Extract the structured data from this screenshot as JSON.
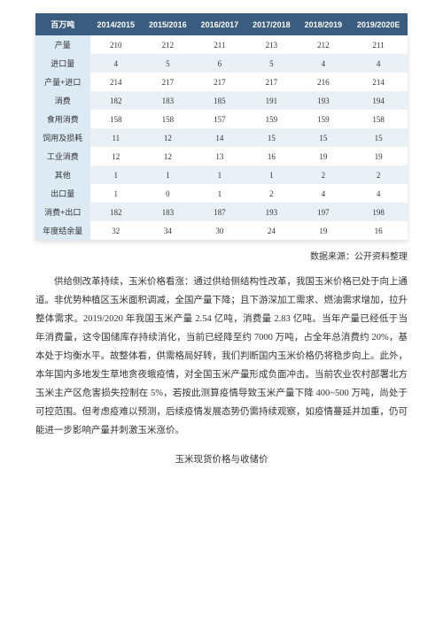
{
  "table": {
    "header_bg": "#3a5c7e",
    "header_color": "#ffffff",
    "rowhead_bg": "#dceaf4",
    "alt_bg": "#eaf1f6",
    "unit_header": "百万吨",
    "year_headers": [
      "2014/2015",
      "2015/2016",
      "2016/2017",
      "2017/2018",
      "2018/2019",
      "2019/2020E"
    ],
    "rows": [
      {
        "label": "产量",
        "vals": [
          "210",
          "212",
          "211",
          "213",
          "212",
          "211"
        ]
      },
      {
        "label": "进口量",
        "vals": [
          "4",
          "5",
          "6",
          "5",
          "4",
          "4"
        ]
      },
      {
        "label": "产量+进口",
        "vals": [
          "214",
          "217",
          "217",
          "217",
          "216",
          "214"
        ]
      },
      {
        "label": "消费",
        "vals": [
          "182",
          "183",
          "185",
          "191",
          "193",
          "194"
        ]
      },
      {
        "label": "食用消费",
        "vals": [
          "158",
          "158",
          "157",
          "159",
          "159",
          "158"
        ]
      },
      {
        "label": "饲用及损耗",
        "vals": [
          "11",
          "12",
          "14",
          "15",
          "15",
          "15"
        ]
      },
      {
        "label": "工业消费",
        "vals": [
          "12",
          "12",
          "13",
          "16",
          "19",
          "19"
        ]
      },
      {
        "label": "其他",
        "vals": [
          "1",
          "1",
          "1",
          "1",
          "2",
          "2"
        ]
      },
      {
        "label": "出口量",
        "vals": [
          "1",
          "0",
          "1",
          "2",
          "4",
          "4"
        ]
      },
      {
        "label": "消费+出口",
        "vals": [
          "182",
          "183",
          "187",
          "193",
          "197",
          "198"
        ]
      },
      {
        "label": "年度结余量",
        "vals": [
          "32",
          "34",
          "30",
          "24",
          "19",
          "16"
        ]
      }
    ]
  },
  "source": "数据来源：公开资料整理",
  "paragraph": "供给侧改革持续，玉米价格看涨：通过供给侧结构性改革，我国玉米价格已处于向上通道。非优势种植区玉米面积调减，全国产量下降；且下游深加工需求、燃油需求增加，拉升整体需求。2019/2020 年我国玉米产量 2.54 亿吨，消费量 2.83 亿吨。当年产量已经低于当年消费量，这令国储库存持续消化，当前已经降至约 7000 万吨，占全年总消费约 20%，基本处于均衡水平。故整体看，供需格局好转，我们判断国内玉米价格仍将稳步向上。此外，本年国内多地发生草地贪夜蛾疫情，对全国玉米产量形成负面冲击。当前农业农村部署北方玉米主产区危害损失控制在 5%，若按此测算疫情导致玉米产量下降 400~500 万吨，尚处于可控范围。但考虑疫难以预测，后续疫情发展态势仍需持续观察，如疫情蔓延并加重，仍可能进一步影响产量并刺激玉米涨价。",
  "section_title": "玉米现货价格与收储价"
}
